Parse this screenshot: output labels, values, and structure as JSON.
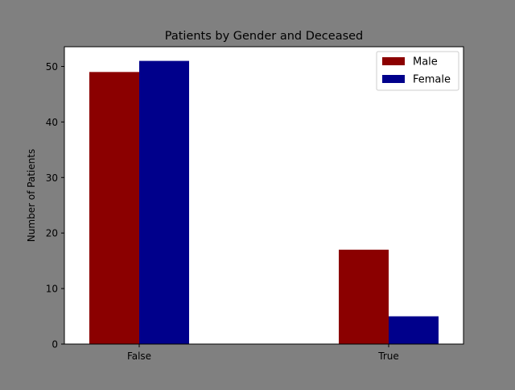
{
  "chart_data": {
    "type": "bar",
    "title": "Patients by Gender and Deceased",
    "xlabel": "",
    "ylabel": "Number of Patients",
    "categories": [
      "False",
      "True"
    ],
    "series": [
      {
        "name": "Male",
        "values": [
          49,
          17
        ],
        "color": "#8b0000"
      },
      {
        "name": "Female",
        "values": [
          51,
          5
        ],
        "color": "#00008b"
      }
    ],
    "ylim": [
      0,
      53.55
    ],
    "yticks": [
      0,
      10,
      20,
      30,
      40,
      50
    ],
    "grid": false,
    "legend": "top-right"
  }
}
